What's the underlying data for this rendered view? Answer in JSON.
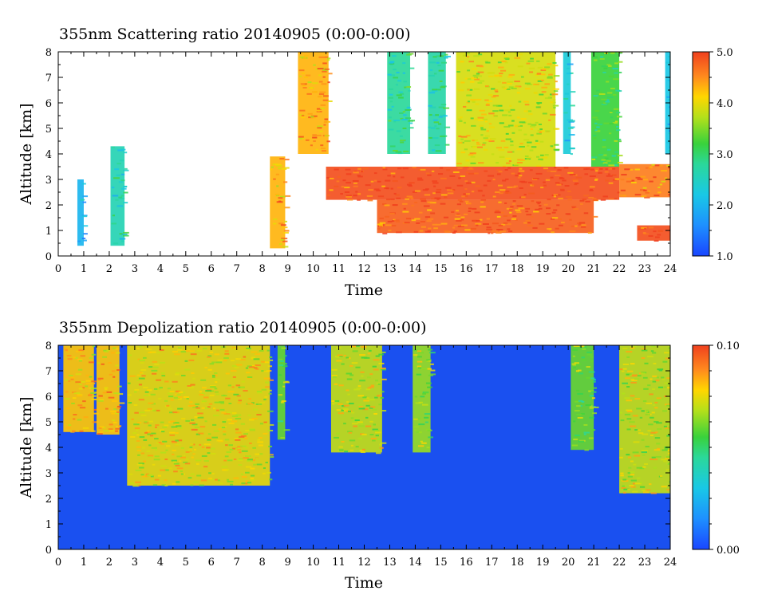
{
  "chart_data": [
    {
      "type": "heatmap",
      "title": "355nm Scattering ratio  20140905 (0:00-0:00)",
      "xlabel": "Time",
      "ylabel": "Altitude [km]",
      "xlim": [
        0,
        24
      ],
      "ylim": [
        0,
        8
      ],
      "xticks": [
        "0",
        "1",
        "2",
        "3",
        "4",
        "5",
        "6",
        "7",
        "8",
        "9",
        "10",
        "11",
        "12",
        "13",
        "14",
        "15",
        "16",
        "17",
        "18",
        "19",
        "20",
        "21",
        "22",
        "23",
        "24"
      ],
      "yticks": [
        "0",
        "1",
        "2",
        "3",
        "4",
        "5",
        "6",
        "7",
        "8"
      ],
      "colorbar": {
        "range": [
          1.0,
          5.0
        ],
        "ticks": [
          "1.0",
          "2.0",
          "3.0",
          "4.0",
          "5.0"
        ]
      },
      "grid": false,
      "features": [
        {
          "t": [
            0.75,
            1.0
          ],
          "z": [
            0.4,
            3.0
          ],
          "level": 2.0
        },
        {
          "t": [
            2.05,
            2.6
          ],
          "z": [
            0.4,
            4.3
          ],
          "level": 2.6
        },
        {
          "t": [
            8.3,
            8.9
          ],
          "z": [
            0.3,
            3.9
          ],
          "level": 4.3
        },
        {
          "t": [
            9.4,
            10.6
          ],
          "z": [
            4.0,
            8.0
          ],
          "level": 4.3
        },
        {
          "t": [
            12.9,
            13.8
          ],
          "z": [
            4.0,
            8.0
          ],
          "level": 2.8
        },
        {
          "t": [
            14.5,
            15.2
          ],
          "z": [
            4.0,
            8.0
          ],
          "level": 2.7
        },
        {
          "t": [
            15.6,
            19.5
          ],
          "z": [
            3.5,
            8.0
          ],
          "level": 3.9
        },
        {
          "t": [
            19.8,
            20.1
          ],
          "z": [
            4.0,
            8.0
          ],
          "level": 2.3
        },
        {
          "t": [
            20.9,
            22.0
          ],
          "z": [
            3.5,
            8.0
          ],
          "level": 3.2
        },
        {
          "t": [
            10.5,
            22.0
          ],
          "z": [
            2.2,
            3.5
          ],
          "level": 4.9
        },
        {
          "t": [
            12.5,
            21.0
          ],
          "z": [
            0.9,
            2.2
          ],
          "level": 4.8
        },
        {
          "t": [
            22.0,
            24.0
          ],
          "z": [
            2.3,
            3.6
          ],
          "level": 4.6
        },
        {
          "t": [
            22.7,
            24.0
          ],
          "z": [
            0.6,
            1.2
          ],
          "level": 4.9
        },
        {
          "t": [
            23.8,
            24.0
          ],
          "z": [
            4.0,
            8.0
          ],
          "level": 2.2
        }
      ]
    },
    {
      "type": "heatmap",
      "title": "355nm Depolization ratio  20140905 (0:00-0:00)",
      "xlabel": "Time",
      "ylabel": "Altitude [km]",
      "xlim": [
        0,
        24
      ],
      "ylim": [
        0,
        8
      ],
      "xticks": [
        "0",
        "1",
        "2",
        "3",
        "4",
        "5",
        "6",
        "7",
        "8",
        "9",
        "10",
        "11",
        "12",
        "13",
        "14",
        "15",
        "16",
        "17",
        "18",
        "19",
        "20",
        "21",
        "22",
        "23",
        "24"
      ],
      "yticks": [
        "0",
        "1",
        "2",
        "3",
        "4",
        "5",
        "6",
        "7",
        "8"
      ],
      "colorbar": {
        "range": [
          0.0,
          0.1
        ],
        "ticks": [
          "0.00",
          "0.10"
        ]
      },
      "grid": false,
      "features": [
        {
          "t": [
            0.2,
            1.4
          ],
          "z": [
            4.6,
            8.0
          ],
          "level": 0.08
        },
        {
          "t": [
            1.5,
            2.4
          ],
          "z": [
            4.5,
            8.0
          ],
          "level": 0.08
        },
        {
          "t": [
            2.7,
            8.3
          ],
          "z": [
            2.5,
            8.0
          ],
          "level": 0.075
        },
        {
          "t": [
            8.6,
            8.9
          ],
          "z": [
            4.3,
            8.0
          ],
          "level": 0.06
        },
        {
          "t": [
            10.7,
            12.7
          ],
          "z": [
            3.8,
            8.0
          ],
          "level": 0.07
        },
        {
          "t": [
            13.9,
            14.6
          ],
          "z": [
            3.8,
            8.0
          ],
          "level": 0.065
        },
        {
          "t": [
            20.1,
            21.0
          ],
          "z": [
            3.9,
            8.0
          ],
          "level": 0.06
        },
        {
          "t": [
            22.0,
            24.0
          ],
          "z": [
            2.2,
            8.0
          ],
          "level": 0.07
        }
      ]
    }
  ]
}
